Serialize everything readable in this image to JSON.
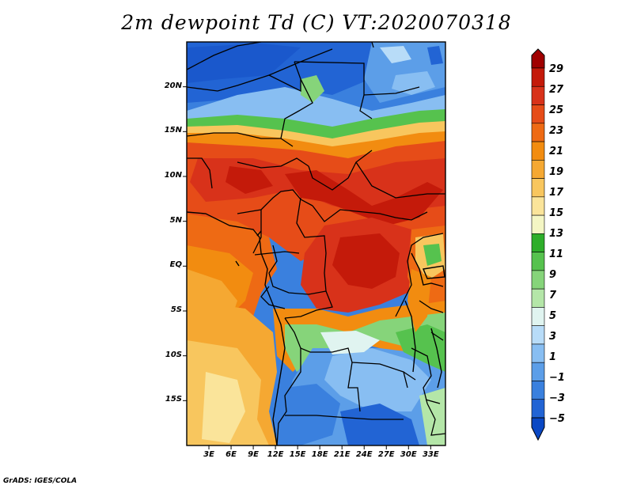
{
  "title": "2m dewpoint Td (C) VT:2020070318",
  "footer": "GrADS: IGES/COLA",
  "map": {
    "lon_range": [
      0,
      35
    ],
    "lat_range": [
      -20,
      25
    ],
    "lat_ticks": [
      {
        "value": 20,
        "label": "20N"
      },
      {
        "value": 15,
        "label": "15N"
      },
      {
        "value": 10,
        "label": "10N"
      },
      {
        "value": 5,
        "label": "5N"
      },
      {
        "value": 0,
        "label": "EQ"
      },
      {
        "value": -5,
        "label": "5S"
      },
      {
        "value": -10,
        "label": "10S"
      },
      {
        "value": -15,
        "label": "15S"
      }
    ],
    "lon_ticks": [
      {
        "value": 3,
        "label": "3E"
      },
      {
        "value": 6,
        "label": "6E"
      },
      {
        "value": 9,
        "label": "9E"
      },
      {
        "value": 12,
        "label": "12E"
      },
      {
        "value": 15,
        "label": "15E"
      },
      {
        "value": 18,
        "label": "18E"
      },
      {
        "value": 21,
        "label": "21E"
      },
      {
        "value": 24,
        "label": "24E"
      },
      {
        "value": 27,
        "label": "27E"
      },
      {
        "value": 30,
        "label": "30E"
      },
      {
        "value": 33,
        "label": "33E"
      }
    ]
  },
  "colorbar": {
    "labels": [
      "29",
      "27",
      "25",
      "23",
      "21",
      "19",
      "17",
      "15",
      "13",
      "11",
      "9",
      "7",
      "5",
      "3",
      "1",
      "−1",
      "−3",
      "−5"
    ],
    "colors": [
      "#a00000",
      "#c41a0a",
      "#d8321a",
      "#e64c18",
      "#ee6a14",
      "#f28c10",
      "#f5a832",
      "#f8c65e",
      "#fae49a",
      "#f4f6c4",
      "#2eae2a",
      "#56c24e",
      "#86d47a",
      "#b4e6a8",
      "#e0f4f0",
      "#b8dcf8",
      "#88bef2",
      "#5c9ee8",
      "#3a80de",
      "#2264d4",
      "#0a48c4"
    ]
  }
}
